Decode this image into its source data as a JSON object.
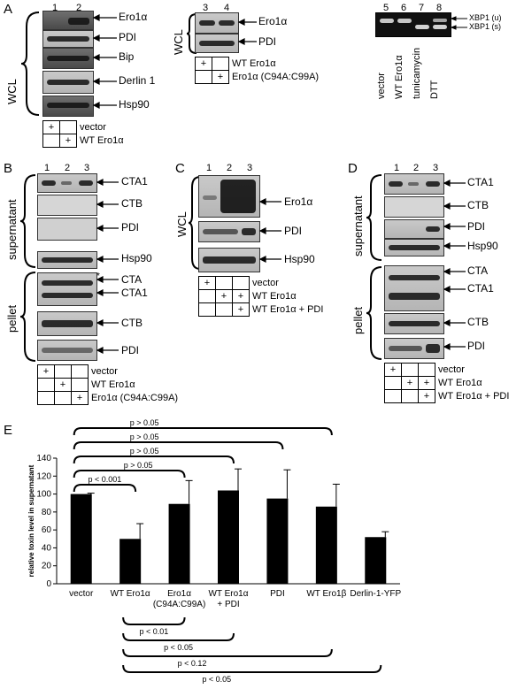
{
  "panels": {
    "A": {
      "letter": "A",
      "left": {
        "lanes": [
          "1",
          "2"
        ],
        "side_label": "WCL",
        "bands": [
          "Ero1α",
          "PDI",
          "Bip",
          "Derlin 1",
          "Hsp90"
        ],
        "conditions": [
          [
            "+",
            ""
          ],
          [
            "",
            "+"
          ]
        ],
        "condition_labels": [
          "vector",
          "WT Ero1α"
        ]
      },
      "middle": {
        "lanes": [
          "3",
          "4"
        ],
        "side_label": "WCL",
        "bands": [
          "Ero1α",
          "PDI"
        ],
        "conditions": [
          [
            "+",
            ""
          ],
          [
            "",
            "+"
          ]
        ],
        "condition_labels": [
          "WT Ero1α",
          "Ero1α (C94A:C99A)"
        ]
      },
      "right": {
        "lanes": [
          "5",
          "6",
          "7",
          "8"
        ],
        "band_labels": [
          "XBP1 (u)",
          "XBP1 (s)"
        ],
        "lane_labels": [
          "vector",
          "WT Ero1α",
          "tunicamycin",
          "DTT"
        ]
      }
    },
    "B": {
      "letter": "B",
      "lanes": [
        "1",
        "2",
        "3"
      ],
      "supernatant_label": "supernatant",
      "pellet_label": "pellet",
      "supernatant_bands": [
        "CTA1",
        "CTB",
        "PDI",
        "Hsp90"
      ],
      "pellet_bands": [
        "CTA",
        "CTA1",
        "CTB",
        "PDI"
      ],
      "asterisk": "*",
      "conditions": [
        [
          "+",
          "",
          ""
        ],
        [
          "",
          "+",
          ""
        ],
        [
          "",
          "",
          "+"
        ]
      ],
      "condition_labels": [
        "vector",
        "WT Ero1α",
        "Ero1α (C94A:C99A)"
      ]
    },
    "C": {
      "letter": "C",
      "lanes": [
        "1",
        "2",
        "3"
      ],
      "side_label": "WCL",
      "bands": [
        "Ero1α",
        "PDI",
        "Hsp90"
      ],
      "conditions": [
        [
          "+",
          "",
          ""
        ],
        [
          "",
          "+",
          "+"
        ],
        [
          "",
          "",
          "+"
        ]
      ],
      "condition_labels": [
        "vector",
        "WT Ero1α",
        "WT Ero1α + PDI"
      ]
    },
    "D": {
      "letter": "D",
      "lanes": [
        "1",
        "2",
        "3"
      ],
      "supernatant_label": "supernatant",
      "pellet_label": "pellet",
      "supernatant_bands": [
        "CTA1",
        "CTB",
        "PDI",
        "Hsp90"
      ],
      "pellet_bands": [
        "CTA",
        "CTA1",
        "CTB",
        "PDI"
      ],
      "conditions": [
        [
          "+",
          "",
          ""
        ],
        [
          "",
          "+",
          "+"
        ],
        [
          "",
          "",
          "+"
        ]
      ],
      "condition_labels": [
        "vector",
        "WT Ero1α",
        "WT Ero1α + PDI"
      ]
    },
    "E": {
      "letter": "E"
    }
  },
  "chart_data": {
    "type": "bar",
    "ylabel": "relative toxin level in supernatant",
    "ylim": [
      0,
      140
    ],
    "yticks": [
      "0",
      "20",
      "40",
      "60",
      "80",
      "100",
      "120",
      "140"
    ],
    "categories": [
      "vector",
      "WT Ero1α",
      "Ero1α\n(C94A:C99A)",
      "WT Ero1α\n+ PDI",
      "PDI",
      "WT Ero1β",
      "Derlin-1-YFP"
    ],
    "values": [
      100,
      50,
      89,
      104,
      95,
      86,
      52
    ],
    "errors": [
      1,
      17,
      26,
      24,
      32,
      25,
      6
    ],
    "color": "#000000",
    "comparisons_top": [
      "p < 0.001",
      "p > 0.05",
      "p > 0.05",
      "p > 0.05",
      "p > 0.05"
    ],
    "comparisons_bottom": [
      "p < 0.01",
      "p < 0.05",
      "p < 0.12",
      "p < 0.05"
    ]
  }
}
